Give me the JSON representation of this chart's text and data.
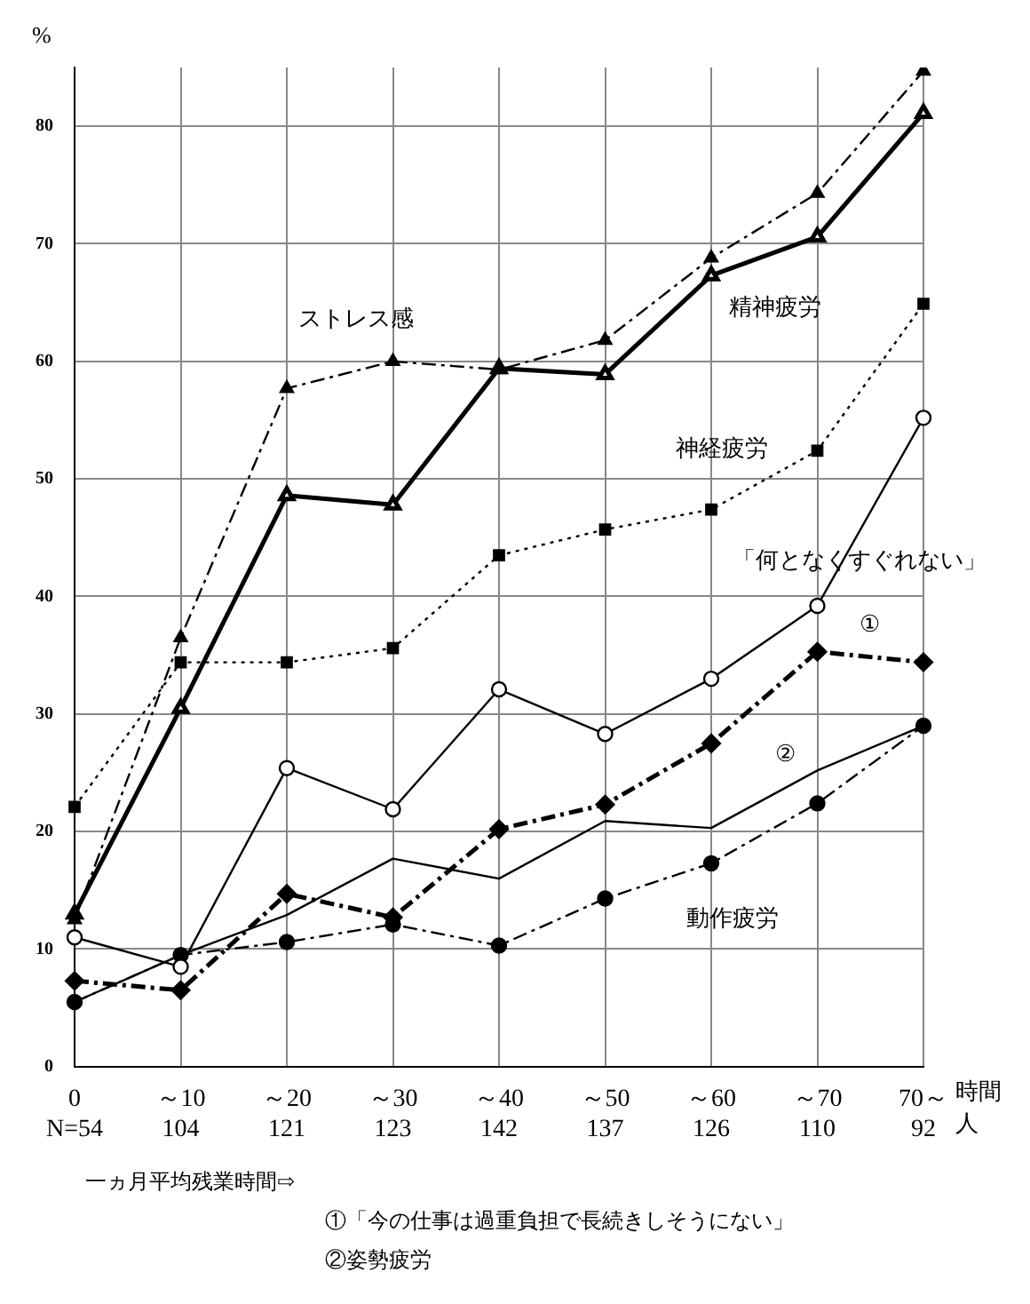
{
  "chart_data": {
    "type": "line",
    "ylabel": "%",
    "xlabel": "時間",
    "categories": [
      "0\nN=54",
      "～10\n104",
      "～20\n121",
      "～30\n123",
      "～40\n142",
      "～50\n137",
      "～60\n126",
      "～70\n110",
      "70～\n92"
    ],
    "ylim": [
      0,
      85
    ],
    "yticks": [
      0,
      10,
      20,
      30,
      40,
      50,
      60,
      70,
      80
    ],
    "grid": true,
    "legend": false,
    "series": [
      {
        "name": "ストレス感",
        "color": "#000000",
        "marker": "triangle",
        "line_style": "dashed",
        "values": [
          12.5,
          36.5,
          57.7,
          60,
          59.3,
          61.8,
          68.8,
          74.3,
          84.7
        ]
      },
      {
        "name": "精神疲労",
        "color": "#000000",
        "marker": "triangle",
        "line_style": "solid",
        "values": [
          13,
          30.5,
          48.6,
          47.8,
          59.4,
          58.9,
          67.3,
          70.6,
          81.1
        ]
      },
      {
        "name": "神経疲労",
        "color": "#000000",
        "marker": "square",
        "line_style": "dotted",
        "values": [
          22.1,
          34.4,
          34.4,
          35.6,
          43.5,
          45.7,
          47.4,
          52.4,
          64.9
        ]
      },
      {
        "name": "「何となくすぐれない」",
        "color": "#000000",
        "marker": "circle",
        "line_style": "solid",
        "values": [
          11,
          8.5,
          25.4,
          21.9,
          32.1,
          28.3,
          33,
          39.2,
          55.2
        ]
      },
      {
        "name": "①",
        "color": "#000000",
        "marker": "diamond",
        "line_style": "dashed",
        "values": [
          7.3,
          6.5,
          14.7,
          12.7,
          20.2,
          22.3,
          27.5,
          35.3,
          34.4
        ]
      },
      {
        "name": "②",
        "color": "#000000",
        "marker": "none",
        "line_style": "solid",
        "values": [
          5.5,
          9.5,
          12.9,
          17.7,
          16,
          20.9,
          20.3,
          25.2,
          29
        ]
      },
      {
        "name": "動作疲労",
        "color": "#000000",
        "marker": "circle",
        "line_style": "dashed",
        "values": [
          5.5,
          9.5,
          10.6,
          12.1,
          10.3,
          14.3,
          17.3,
          22.4,
          29
        ]
      }
    ],
    "annotations": [
      "人",
      "一ヵ月平均残業時間⇨",
      "①「今の仕事は過重負担で長続きしそうにない」",
      "②姿勢疲労"
    ]
  }
}
